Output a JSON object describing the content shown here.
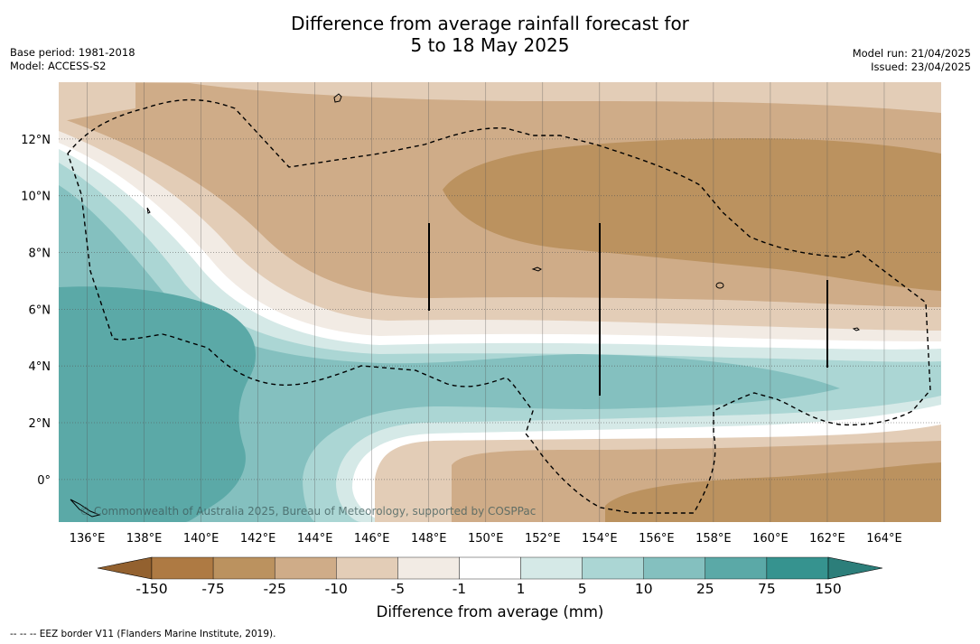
{
  "title": {
    "line1": "Difference from average rainfall forecast for",
    "line2": "5 to 18 May 2025"
  },
  "meta_left": [
    "Base period: 1981-2018",
    "Model: ACCESS-S2"
  ],
  "meta_right": [
    "Model run: 21/04/2025",
    "Issued: 23/04/2025"
  ],
  "map": {
    "lon_range": [
      135,
      166
    ],
    "lat_range": [
      -1.5,
      14
    ],
    "lon_ticks": [
      "136°E",
      "138°E",
      "140°E",
      "142°E",
      "144°E",
      "146°E",
      "148°E",
      "150°E",
      "152°E",
      "154°E",
      "156°E",
      "158°E",
      "160°E",
      "162°E",
      "164°E"
    ],
    "lat_ticks": [
      "12°N",
      "10°N",
      "8°N",
      "6°N",
      "4°N",
      "2°N",
      "0°"
    ],
    "copyright": "© Commonwealth of Australia 2025, Bureau of Meteorology, supported by COSPPac"
  },
  "colorbar": {
    "title": "Difference from average (mm)",
    "labels": [
      "-150",
      "-75",
      "-25",
      "-10",
      "-5",
      "-1",
      "1",
      "5",
      "10",
      "25",
      "75",
      "150"
    ],
    "colors": [
      "#ae7a43",
      "#bb925f",
      "#cfac88",
      "#e3cdb7",
      "#f2ebe4",
      "#ffffff",
      "#d5e9e7",
      "#abd6d4",
      "#84c0bf",
      "#5ba9a7",
      "#36938f"
    ],
    "ext_low": "#93612f",
    "ext_high": "#2c7e7a"
  },
  "footnote": "--  --  -- EEZ border V11 (Flanders Marine Institute, 2019)."
}
